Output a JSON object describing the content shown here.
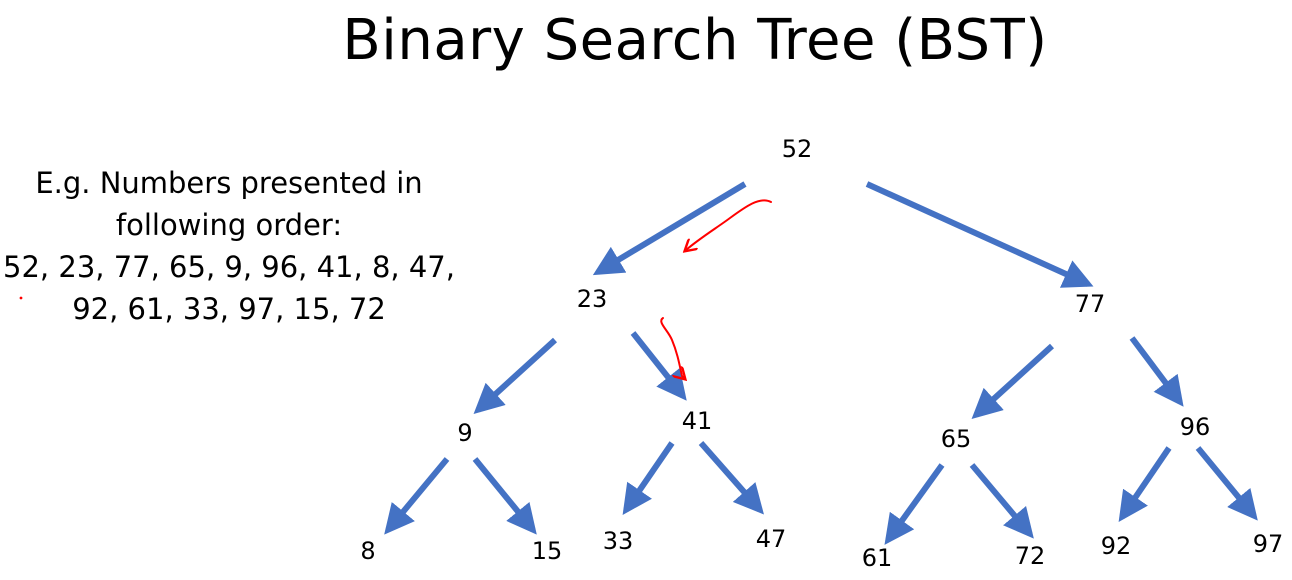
{
  "title": "Binary Search Tree (BST)",
  "example": {
    "line1": "E.g. Numbers presented in",
    "line2": "following order:",
    "line3": "52, 23, 77, 65, 9, 96, 41, 8, 47,",
    "line4": "92, 61, 33, 97, 15, 72"
  },
  "colors": {
    "edge": "#4472C4",
    "annotation": "#FF0000",
    "text": "#000000"
  },
  "tree": {
    "nodes": [
      {
        "id": "52",
        "label": "52"
      },
      {
        "id": "23",
        "label": "23"
      },
      {
        "id": "77",
        "label": "77"
      },
      {
        "id": "9",
        "label": "9"
      },
      {
        "id": "41",
        "label": "41"
      },
      {
        "id": "65",
        "label": "65"
      },
      {
        "id": "96",
        "label": "96"
      },
      {
        "id": "8",
        "label": "8"
      },
      {
        "id": "15",
        "label": "15"
      },
      {
        "id": "33",
        "label": "33"
      },
      {
        "id": "47",
        "label": "47"
      },
      {
        "id": "61",
        "label": "61"
      },
      {
        "id": "72",
        "label": "72"
      },
      {
        "id": "92",
        "label": "92"
      },
      {
        "id": "97",
        "label": "97"
      }
    ],
    "edges": [
      {
        "from": "52",
        "to": "23"
      },
      {
        "from": "52",
        "to": "77"
      },
      {
        "from": "23",
        "to": "9"
      },
      {
        "from": "23",
        "to": "41"
      },
      {
        "from": "77",
        "to": "65"
      },
      {
        "from": "77",
        "to": "96"
      },
      {
        "from": "9",
        "to": "8"
      },
      {
        "from": "9",
        "to": "15"
      },
      {
        "from": "41",
        "to": "33"
      },
      {
        "from": "41",
        "to": "47"
      },
      {
        "from": "65",
        "to": "61"
      },
      {
        "from": "65",
        "to": "72"
      },
      {
        "from": "96",
        "to": "92"
      },
      {
        "from": "96",
        "to": "97"
      }
    ],
    "annotations": [
      {
        "id": "path-52-23",
        "description": "hand-drawn red arrow"
      },
      {
        "id": "path-23-41",
        "description": "hand-drawn red arrow"
      }
    ]
  }
}
